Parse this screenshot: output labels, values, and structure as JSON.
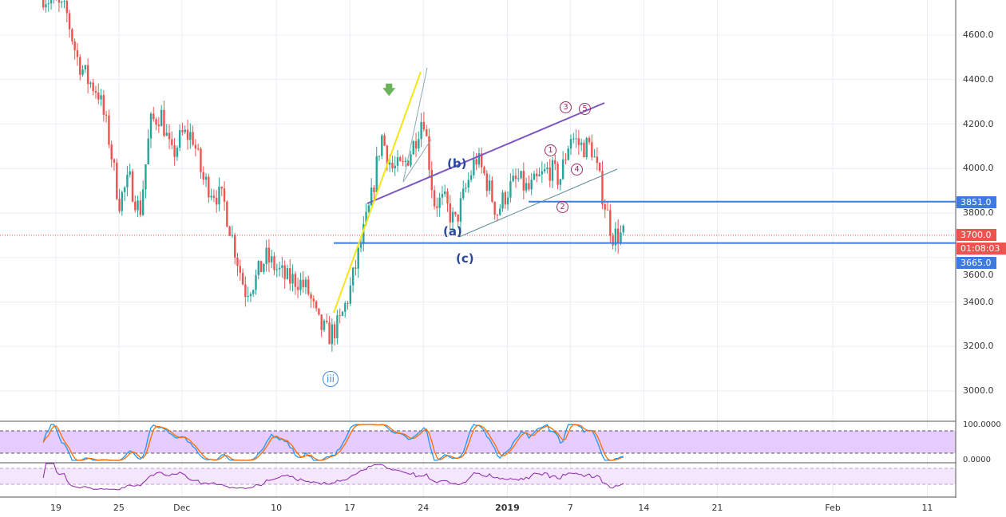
{
  "price_axis": {
    "labels": [
      "4600.0",
      "4400.0",
      "4200.0",
      "4000.0",
      "3800.0",
      "3600.0",
      "3400.0",
      "3200.0",
      "3000.0"
    ],
    "values": [
      4600,
      4400,
      4200,
      4000,
      3800,
      3600,
      3400,
      3200,
      3000
    ]
  },
  "price_tags": {
    "level_high": "3851.0",
    "last_price": "3700.0",
    "countdown": "01:08:03",
    "level_low": "3665.0"
  },
  "date_axis": [
    "19",
    "25",
    "Dec",
    "10",
    "17",
    "24",
    "2019",
    "7",
    "14",
    "21",
    "Feb",
    "11"
  ],
  "annotations": {
    "b": "(b)",
    "a": "(a)",
    "c": "(c)",
    "w1": "1",
    "w2": "2",
    "w3": "3",
    "w4": "4",
    "w5": "5",
    "iii": "iii"
  },
  "oscillators": {
    "stoch_top": "100.0000",
    "stoch_bottom": "0.0000"
  },
  "colors": {
    "up": "#26a69a",
    "down": "#ef5350",
    "level": "#3d7be0",
    "last": "#ef5350",
    "purple_trend": "#7e57c2",
    "yellow_trend": "#f5e612",
    "band": "#e6ccff"
  },
  "chart_data": {
    "type": "candlestick",
    "approx_closes": [
      [
        "2018-11-20",
        4700
      ],
      [
        "2018-11-21",
        4500
      ],
      [
        "2018-11-22",
        4400
      ],
      [
        "2018-11-23",
        4350
      ],
      [
        "2018-11-24",
        4150
      ],
      [
        "2018-11-25",
        3850
      ],
      [
        "2018-11-26",
        3950
      ],
      [
        "2018-11-27",
        3800
      ],
      [
        "2018-11-28",
        4200
      ],
      [
        "2018-11-29",
        4250
      ],
      [
        "2018-11-30",
        4050
      ],
      [
        "2018-12-01",
        4150
      ],
      [
        "2018-12-02",
        4150
      ],
      [
        "2018-12-03",
        3950
      ],
      [
        "2018-12-04",
        3900
      ],
      [
        "2018-12-05",
        3850
      ],
      [
        "2018-12-06",
        3650
      ],
      [
        "2018-12-07",
        3450
      ],
      [
        "2018-12-08",
        3500
      ],
      [
        "2018-12-09",
        3600
      ],
      [
        "2018-12-10",
        3550
      ],
      [
        "2018-12-11",
        3500
      ],
      [
        "2018-12-12",
        3500
      ],
      [
        "2018-12-13",
        3450
      ],
      [
        "2018-12-14",
        3300
      ],
      [
        "2018-12-15",
        3250
      ],
      [
        "2018-12-16",
        3300
      ],
      [
        "2018-12-17",
        3450
      ],
      [
        "2018-12-18",
        3650
      ],
      [
        "2018-12-19",
        3850
      ],
      [
        "2018-12-20",
        4150
      ],
      [
        "2018-12-21",
        4000
      ],
      [
        "2018-12-22",
        4000
      ],
      [
        "2018-12-23",
        4100
      ],
      [
        "2018-12-24",
        4250
      ],
      [
        "2018-12-25",
        3850
      ],
      [
        "2018-12-26",
        3850
      ],
      [
        "2018-12-27",
        3750
      ],
      [
        "2018-12-28",
        3900
      ],
      [
        "2018-12-29",
        4050
      ],
      [
        "2018-12-30",
        3950
      ],
      [
        "2018-12-31",
        3800
      ],
      [
        "2019-01-01",
        3900
      ],
      [
        "2019-01-02",
        3950
      ],
      [
        "2019-01-03",
        3900
      ],
      [
        "2019-01-04",
        3950
      ],
      [
        "2019-01-05",
        4000
      ],
      [
        "2019-01-06",
        3950
      ],
      [
        "2019-01-07",
        4150
      ],
      [
        "2019-01-08",
        4100
      ],
      [
        "2019-01-09",
        4100
      ],
      [
        "2019-01-10",
        3900
      ],
      [
        "2019-01-11",
        3700
      ],
      [
        "2019-01-12",
        3700
      ]
    ],
    "ylim": [
      2850,
      4780
    ],
    "horizontal_levels": [
      3851,
      3665
    ],
    "last_price": 3700
  }
}
